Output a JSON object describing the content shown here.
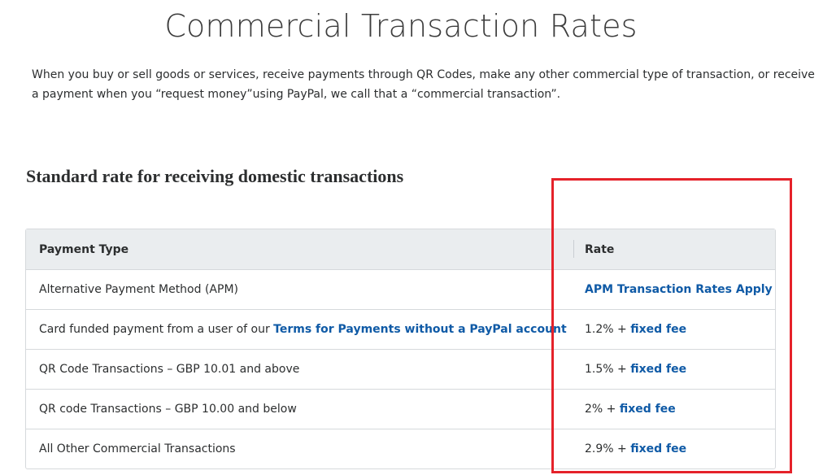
{
  "page": {
    "title": "Commercial Transaction Rates",
    "intro_line1": "When you buy or sell goods or services, receive payments through QR Codes, make any other commercial type of transaction, or receive",
    "intro_line2": "a payment when you “request money”using PayPal, we call that a “commercial transaction”."
  },
  "section": {
    "heading": "Standard rate for receiving domestic transactions"
  },
  "table": {
    "headers": [
      "Payment Type",
      "Rate"
    ],
    "rows": [
      {
        "type_text": "Alternative Payment Method (APM)",
        "rate_link": "APM Transaction Rates Apply"
      },
      {
        "type_text": "Card funded payment from a user of our ",
        "type_link": "Terms for Payments without a PayPal account",
        "rate_text": "1.2% + ",
        "rate_link": "fixed fee"
      },
      {
        "type_text": "QR Code Transactions – GBP 10.01 and above",
        "rate_text": "1.5% + ",
        "rate_link": "fixed fee"
      },
      {
        "type_text": "QR code Transactions – GBP 10.00 and below",
        "rate_text": "2% + ",
        "rate_link": "fixed fee"
      },
      {
        "type_text": "All Other Commercial Transactions",
        "rate_text": "2.9% + ",
        "rate_link": "fixed fee"
      }
    ]
  },
  "colors": {
    "link": "#0f5aa6",
    "header_bg": "#eaedef",
    "highlight": "#e5222a"
  }
}
